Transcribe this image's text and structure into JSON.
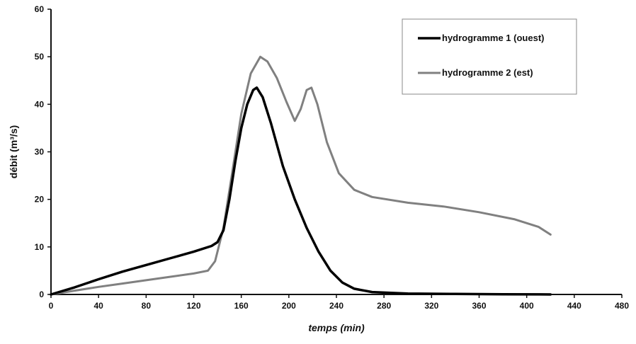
{
  "chart_data": {
    "type": "line",
    "xlabel": "temps (min)",
    "ylabel": "débit (m³/s)",
    "xlim": [
      0,
      480
    ],
    "ylim": [
      0,
      60
    ],
    "x_ticks": [
      "0",
      "40",
      "80",
      "120",
      "160",
      "200",
      "240",
      "280",
      "320",
      "360",
      "400",
      "440",
      "480"
    ],
    "y_ticks": [
      "0",
      "10",
      "20",
      "30",
      "40",
      "50",
      "60"
    ],
    "grid": false,
    "legend_position": "top-right",
    "series": [
      {
        "name": "hydrogramme 1 (ouest)",
        "color": "#000000",
        "points": [
          [
            0,
            0
          ],
          [
            20,
            1.5
          ],
          [
            40,
            3.2
          ],
          [
            60,
            4.8
          ],
          [
            80,
            6.2
          ],
          [
            100,
            7.6
          ],
          [
            120,
            9.0
          ],
          [
            135,
            10.2
          ],
          [
            140,
            11.0
          ],
          [
            145,
            13.5
          ],
          [
            150,
            20.0
          ],
          [
            155,
            28.0
          ],
          [
            160,
            35.0
          ],
          [
            165,
            40.0
          ],
          [
            170,
            43.0
          ],
          [
            173,
            43.5
          ],
          [
            178,
            41.5
          ],
          [
            185,
            36.0
          ],
          [
            195,
            27.0
          ],
          [
            205,
            20.0
          ],
          [
            215,
            14.0
          ],
          [
            225,
            9.0
          ],
          [
            235,
            5.0
          ],
          [
            245,
            2.5
          ],
          [
            255,
            1.2
          ],
          [
            270,
            0.5
          ],
          [
            300,
            0.2
          ],
          [
            340,
            0.1
          ],
          [
            380,
            0.05
          ],
          [
            420,
            0.0
          ]
        ]
      },
      {
        "name": "hydrogramme 2 (est)",
        "color": "#808080",
        "points": [
          [
            0,
            0
          ],
          [
            20,
            0.8
          ],
          [
            40,
            1.6
          ],
          [
            60,
            2.3
          ],
          [
            80,
            3.0
          ],
          [
            100,
            3.7
          ],
          [
            120,
            4.4
          ],
          [
            132,
            5.0
          ],
          [
            138,
            7.0
          ],
          [
            145,
            14.0
          ],
          [
            152,
            25.0
          ],
          [
            160,
            38.0
          ],
          [
            168,
            46.5
          ],
          [
            176,
            50.0
          ],
          [
            182,
            49.0
          ],
          [
            190,
            45.5
          ],
          [
            198,
            40.5
          ],
          [
            205,
            36.5
          ],
          [
            210,
            39.0
          ],
          [
            215,
            43.0
          ],
          [
            219,
            43.5
          ],
          [
            224,
            40.0
          ],
          [
            232,
            32.0
          ],
          [
            242,
            25.5
          ],
          [
            255,
            22.0
          ],
          [
            270,
            20.5
          ],
          [
            300,
            19.3
          ],
          [
            330,
            18.5
          ],
          [
            360,
            17.3
          ],
          [
            390,
            15.8
          ],
          [
            410,
            14.2
          ],
          [
            420,
            12.6
          ]
        ]
      }
    ]
  }
}
